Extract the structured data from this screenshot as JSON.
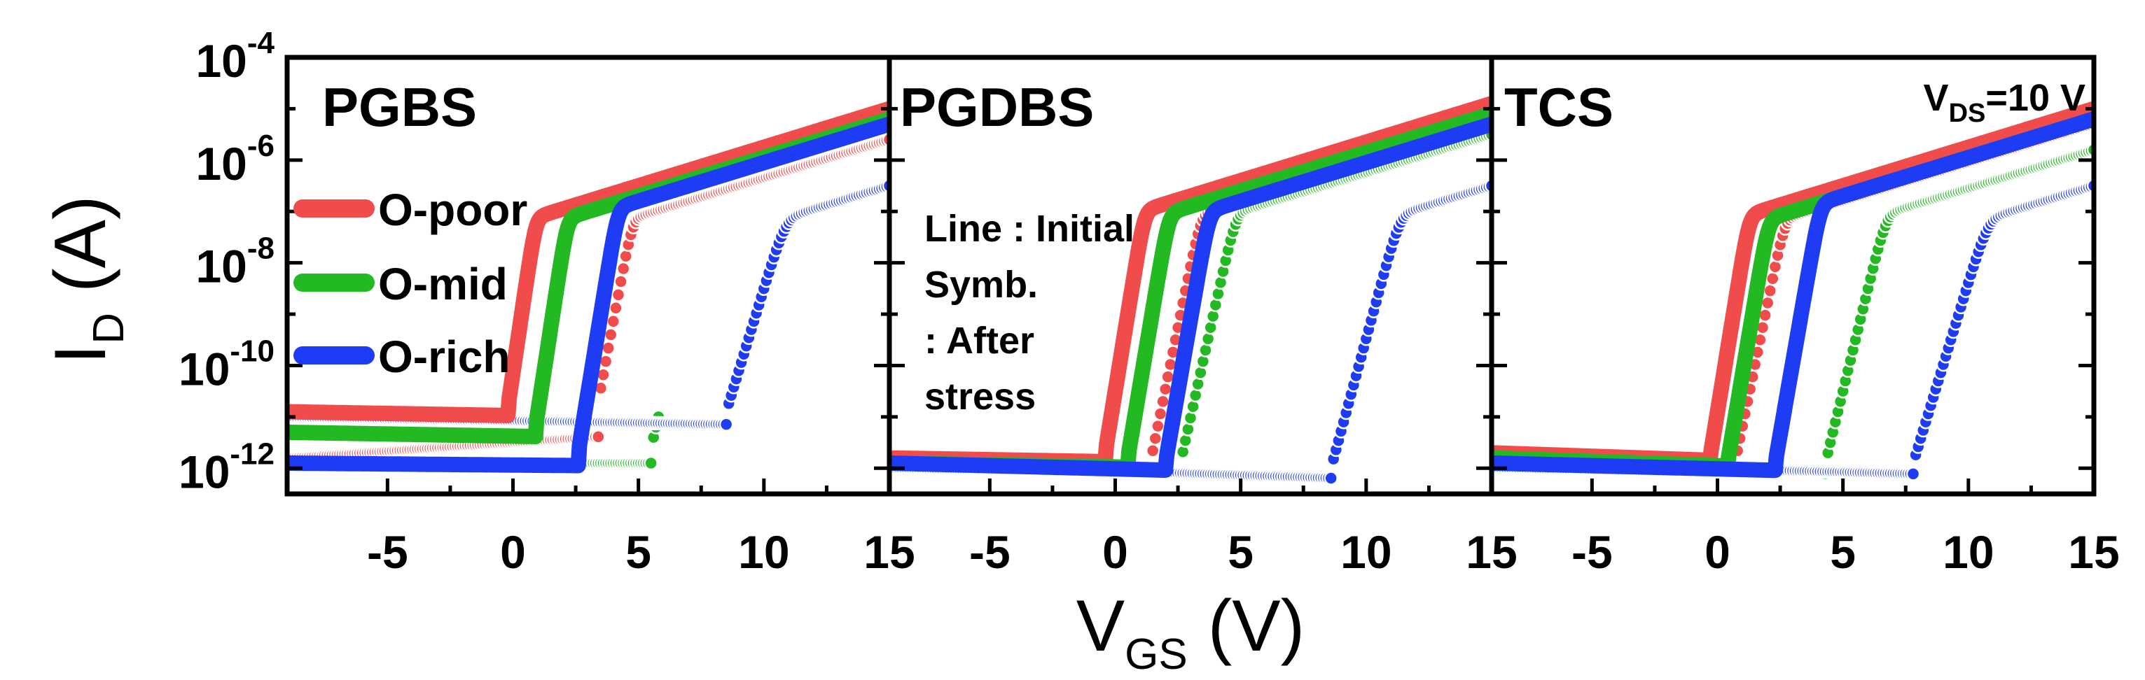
{
  "chart_data": {
    "type": "scatter",
    "yscale": "log",
    "xlabel": {
      "base": "V",
      "sub": "GS",
      "unit": " (V)"
    },
    "ylabel": {
      "base": "I",
      "sub": "D",
      "unit": " (A)"
    },
    "xlim": [
      -9,
      15
    ],
    "ylim_exp": [
      -12.5,
      -4
    ],
    "xticks": [
      "-5",
      "0",
      "5",
      "10",
      "15"
    ],
    "xtick_values": [
      -5,
      0,
      5,
      10,
      15
    ],
    "yticks": [
      {
        "base": "10",
        "exp": "-4",
        "v": -4
      },
      {
        "base": "10",
        "exp": "-6",
        "v": -6
      },
      {
        "base": "10",
        "exp": "-8",
        "v": -8
      },
      {
        "base": "10",
        "exp": "-10",
        "v": -10
      },
      {
        "base": "10",
        "exp": "-12",
        "v": -12
      }
    ],
    "legend": {
      "items": [
        {
          "label": "O-poor",
          "color": "#f04c4c"
        },
        {
          "label": "O-mid",
          "color": "#22b922"
        },
        {
          "label": "O-rich",
          "color": "#1f3cf5"
        }
      ]
    },
    "annotation": {
      "lines": [
        "Line : Initial",
        "Symb.",
        ": After",
        "  stress"
      ]
    },
    "vds_label": {
      "base": "V",
      "sub": "DS",
      "rest": "=10 V"
    },
    "panels": [
      {
        "title": "PGBS",
        "curves": [
          {
            "series": "O-poor",
            "color": "#f04c4c",
            "style": "line",
            "von": -0.2,
            "sat": -5.0,
            "slope": 3.3,
            "off_start": -10.9,
            "off_end": -11.1,
            "xmin": -9,
            "xmax": 15
          },
          {
            "series": "O-mid",
            "color": "#22b922",
            "style": "line",
            "von": 0.9,
            "sat": -5.2,
            "slope": 3.2,
            "off_start": -11.3,
            "off_end": -11.5,
            "xmin": -9,
            "xmax": 15
          },
          {
            "series": "O-rich",
            "color": "#1f3cf5",
            "style": "line",
            "von": 2.6,
            "sat": -5.3,
            "slope": 3.0,
            "off_start": -11.9,
            "off_end": -12.0,
            "xmin": -9,
            "xmax": 15
          },
          {
            "series": "O-poor",
            "color": "#f04c4c",
            "style": "symbol",
            "von": 3.4,
            "sat": -5.6,
            "slope": 2.6,
            "off_start": -11.8,
            "off_end": -11.0,
            "xmin": -9,
            "xmax": 15
          },
          {
            "series": "O-mid",
            "color": "#22b922",
            "style": "symbol",
            "von": 5.5,
            "sat": -5.8,
            "slope": 2.0,
            "off_start": -11.9,
            "off_end": -11.9,
            "xmin": -9,
            "xmax": 5.8
          },
          {
            "series": "O-rich",
            "color": "#1f3cf5",
            "style": "symbol",
            "von": 8.5,
            "sat": -6.5,
            "slope": 1.6,
            "off_start": -11.0,
            "off_end": -11.2,
            "xmin": -9,
            "xmax": 15
          }
        ]
      },
      {
        "title": "PGDBS",
        "curves": [
          {
            "series": "O-poor",
            "color": "#f04c4c",
            "style": "line",
            "von": -0.4,
            "sat": -4.9,
            "slope": 3.0,
            "off_start": -11.8,
            "off_end": -12.0,
            "xmin": -9,
            "xmax": 15
          },
          {
            "series": "O-mid",
            "color": "#22b922",
            "style": "line",
            "von": 0.5,
            "sat": -5.1,
            "slope": 2.9,
            "off_start": -11.9,
            "off_end": -12.1,
            "xmin": -9,
            "xmax": 15
          },
          {
            "series": "O-rich",
            "color": "#1f3cf5",
            "style": "line",
            "von": 2.0,
            "sat": -5.3,
            "slope": 2.8,
            "off_start": -11.9,
            "off_end": -12.2,
            "xmin": -9,
            "xmax": 15
          },
          {
            "series": "O-poor",
            "color": "#f04c4c",
            "style": "symbol",
            "von": 1.4,
            "sat": -5.3,
            "slope": 2.4,
            "off_start": -12.0,
            "off_end": -12.2,
            "xmin": -9,
            "xmax": 15
          },
          {
            "series": "O-mid",
            "color": "#22b922",
            "style": "symbol",
            "von": 2.6,
            "sat": -5.5,
            "slope": 2.2,
            "off_start": -12.0,
            "off_end": -12.2,
            "xmin": -9,
            "xmax": 15
          },
          {
            "series": "O-rich",
            "color": "#1f3cf5",
            "style": "symbol",
            "von": 8.6,
            "sat": -6.5,
            "slope": 1.8,
            "off_start": -11.9,
            "off_end": -12.3,
            "xmin": -9,
            "xmax": 15
          }
        ]
      },
      {
        "title": "TCS",
        "curves": [
          {
            "series": "O-poor",
            "color": "#f04c4c",
            "style": "line",
            "von": -0.3,
            "sat": -5.0,
            "slope": 3.0,
            "off_start": -11.7,
            "off_end": -12.1,
            "xmin": -9,
            "xmax": 15
          },
          {
            "series": "O-mid",
            "color": "#22b922",
            "style": "line",
            "von": 0.4,
            "sat": -5.2,
            "slope": 2.9,
            "off_start": -11.8,
            "off_end": -12.2,
            "xmin": -9,
            "xmax": 15
          },
          {
            "series": "O-rich",
            "color": "#1f3cf5",
            "style": "line",
            "von": 2.3,
            "sat": -5.2,
            "slope": 2.8,
            "off_start": -11.9,
            "off_end": -12.2,
            "xmin": -9,
            "xmax": 15
          },
          {
            "series": "O-poor",
            "color": "#f04c4c",
            "style": "symbol",
            "von": 0.7,
            "sat": -5.3,
            "slope": 2.4,
            "off_start": -11.9,
            "off_end": -12.2,
            "xmin": -9,
            "xmax": 15
          },
          {
            "series": "O-mid",
            "color": "#22b922",
            "style": "symbol",
            "von": 4.3,
            "sat": -5.8,
            "slope": 2.0,
            "off_start": -12.0,
            "off_end": -12.2,
            "xmin": -9,
            "xmax": 15
          },
          {
            "series": "O-rich",
            "color": "#1f3cf5",
            "style": "symbol",
            "von": 7.8,
            "sat": -6.5,
            "slope": 1.6,
            "off_start": -11.9,
            "off_end": -12.2,
            "xmin": -9,
            "xmax": 15
          }
        ]
      }
    ]
  }
}
